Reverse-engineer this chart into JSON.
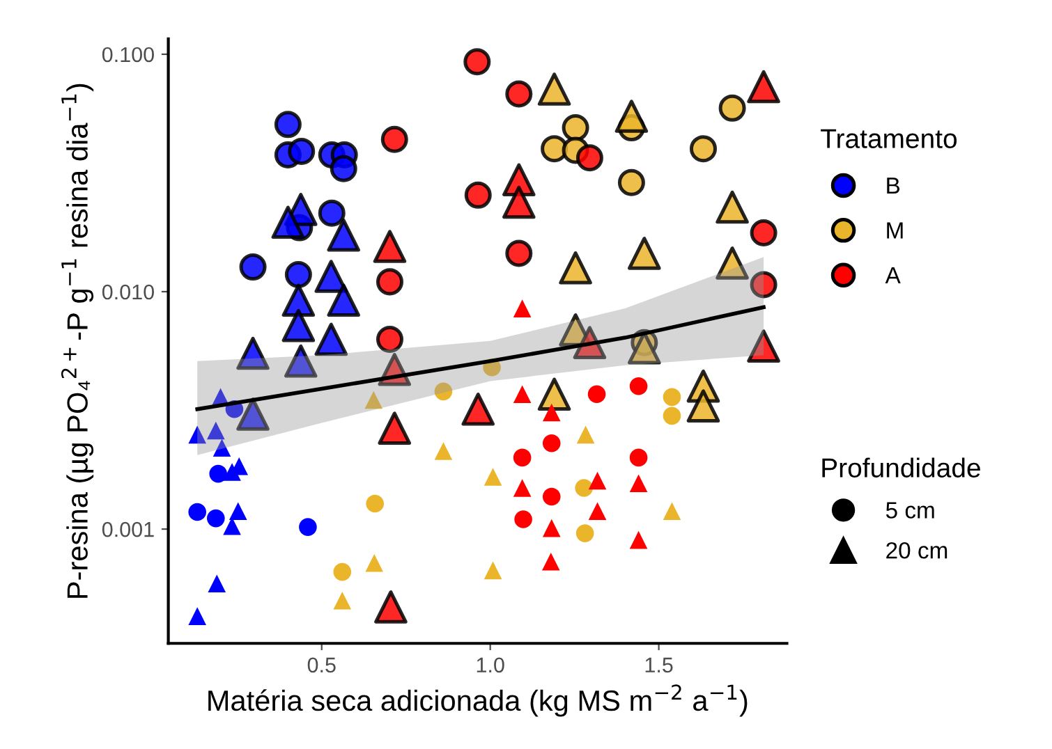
{
  "chart_data": {
    "type": "scatter",
    "xlabel": "Matéria seca adicionada (kg MS m$^{−2}$ a$^{−1}$)",
    "ylabel": "P-resina (µg PO₄$^{2+}$-P g$^{−1}$ resina dia$^{−1}$)",
    "legend_title": "Tratamento",
    "legend": "right",
    "log": "y",
    "grid": false,
    "xlim": [
      0.045,
      1.88
    ],
    "xticks": [
      0.5,
      {
        "value": 1.0,
        "label": "1.0"
      },
      1.5
    ],
    "ylim": [
      0.00033,
      0.116
    ],
    "yticks": [
      {
        "value": 0.001,
        "label": "0.001"
      },
      {
        "value": 0.01,
        "label": "0.010"
      },
      {
        "value": 0.1,
        "label": "0.100"
      }
    ],
    "annotations": [
      "Profundidade",
      "5 cm",
      "20 cm"
    ],
    "series": [
      {
        "name": "B",
        "type": "bubble",
        "color": "#0000ff",
        "marker": "circle",
        "x": [
          0.4,
          0.4,
          0.44,
          0.53,
          0.567,
          0.565,
          0.53,
          0.434,
          0.296,
          0.431
        ],
        "values": [
          0.0506,
          0.0377,
          0.039,
          0.0377,
          0.0377,
          0.033,
          0.0214,
          0.0186,
          0.0127,
          0.0118
        ],
        "sizes": [
          1,
          1,
          1,
          1,
          1,
          1,
          1,
          1,
          1,
          1
        ]
      },
      {
        "type": "bubble",
        "sizes": [
          1,
          1,
          1,
          1,
          1,
          1,
          1,
          1,
          1,
          1,
          1
        ],
        "color": "#0000ff",
        "marker": "triangle",
        "x": [
          0.438,
          0.4,
          0.565,
          0.528,
          0.565,
          0.431,
          0.431,
          0.528,
          0.296,
          0.438,
          0.296
        ],
        "values": [
          0.0222,
          0.0196,
          0.0173,
          0.0116,
          0.0092,
          0.0092,
          0.0072,
          0.0063,
          0.0055,
          0.0051,
          0.00305
        ]
      },
      {
        "color": "#0000ff",
        "marker": "circle",
        "x": [
          0.241,
          0.193,
          0.131,
          0.186,
          0.459
        ],
        "values": [
          0.0032,
          0.00171,
          0.00118,
          0.00111,
          0.00102
        ]
      },
      {
        "color": "#0000ff",
        "marker": "triangle",
        "x": [
          0.2,
          0.131,
          0.186,
          0.204,
          0.234,
          0.255,
          0.252,
          0.234,
          0.189,
          0.131
        ],
        "values": [
          0.0036,
          0.0025,
          0.0026,
          0.0022,
          0.00174,
          0.00184,
          0.00119,
          0.00103,
          0.00059,
          0.00043
        ]
      },
      {
        "name": "M",
        "type": "bubble",
        "sizes": [
          1,
          1,
          1,
          1,
          1,
          1,
          1,
          1
        ],
        "color": "#ebb52b",
        "marker": "circle",
        "x": [
          1.419,
          1.718,
          1.253,
          1.19,
          1.253,
          1.632,
          1.419,
          1.457
        ],
        "values": [
          0.049,
          0.0593,
          0.049,
          0.04,
          0.0394,
          0.04,
          0.0288,
          0.0061
        ]
      },
      {
        "type": "bubble",
        "sizes": [
          1,
          1,
          1,
          1,
          1,
          1,
          1,
          1,
          1,
          1,
          1
        ],
        "color": "#ebb52b",
        "marker": "triangle",
        "x": [
          1.19,
          1.419,
          1.718,
          1.457,
          1.253,
          1.718,
          1.253,
          1.457,
          1.19,
          1.632,
          1.632
        ],
        "values": [
          0.0713,
          0.0548,
          0.0227,
          0.0145,
          0.0126,
          0.0132,
          0.0069,
          0.0058,
          0.0037,
          0.004,
          0.0033
        ]
      },
      {
        "color": "#ebb52b",
        "marker": "circle",
        "x": [
          0.861,
          1.005,
          1.539,
          1.539,
          1.278,
          1.281,
          0.658,
          0.561
        ],
        "values": [
          0.0038,
          0.0048,
          0.0036,
          0.003,
          0.00149,
          0.00096,
          0.00128,
          0.00066
        ]
      },
      {
        "color": "#ebb52b",
        "marker": "triangle",
        "x": [
          0.654,
          0.861,
          1.283,
          1.008,
          1.539,
          1.008,
          0.656,
          0.561
        ],
        "values": [
          0.0035,
          0.00213,
          0.0025,
          0.00166,
          0.00119,
          0.00067,
          0.00072,
          0.0005
        ]
      },
      {
        "name": "A",
        "type": "bubble",
        "sizes": [
          1,
          1,
          1,
          1,
          1,
          1,
          1,
          1,
          1,
          1
        ],
        "color": "#ff0000",
        "marker": "circle",
        "x": [
          0.961,
          1.085,
          0.716,
          1.295,
          0.964,
          1.811,
          1.085,
          1.811,
          0.702,
          0.702
        ],
        "values": [
          0.093,
          0.068,
          0.0438,
          0.0366,
          0.0255,
          0.0177,
          0.0145,
          0.0107,
          0.011,
          0.0063
        ]
      },
      {
        "type": "bubble",
        "sizes": [
          1,
          1,
          1,
          1,
          1,
          1,
          1,
          1,
          1,
          1
        ],
        "color": "#ff0000",
        "marker": "triangle",
        "x": [
          1.811,
          1.085,
          1.085,
          0.702,
          1.295,
          1.811,
          0.716,
          0.964,
          0.716,
          0.705
        ],
        "values": [
          0.073,
          0.0296,
          0.0238,
          0.0155,
          0.0061,
          0.0059,
          0.0047,
          0.0032,
          0.00266,
          0.00047
        ]
      },
      {
        "color": "#ff0000",
        "marker": "circle",
        "x": [
          1.316,
          1.44,
          1.182,
          1.095,
          1.44,
          1.182,
          1.098
        ],
        "values": [
          0.0037,
          0.004,
          0.0023,
          0.002,
          0.002,
          0.00137,
          0.0011
        ]
      },
      {
        "color": "#ff0000",
        "marker": "triangle",
        "x": [
          1.095,
          1.095,
          1.182,
          1.095,
          1.318,
          1.44,
          1.318,
          1.182,
          1.44,
          1.18
        ],
        "values": [
          0.0085,
          0.0037,
          0.0031,
          0.00149,
          0.0016,
          0.00156,
          0.00119,
          0.00101,
          0.0009,
          0.00073
        ]
      },
      {
        "type": "line",
        "color": "#000000",
        "x": [
          0.131,
          0.5,
          1.0,
          1.4,
          1.811
        ],
        "values": [
          0.0032,
          0.0039,
          0.0051,
          0.0064,
          0.0086
        ],
        "lower": [
          0.00205,
          0.0028,
          0.0042,
          0.0049,
          0.0054
        ],
        "upper": [
          0.0051,
          0.0054,
          0.0062,
          0.0085,
          0.014
        ]
      }
    ]
  }
}
